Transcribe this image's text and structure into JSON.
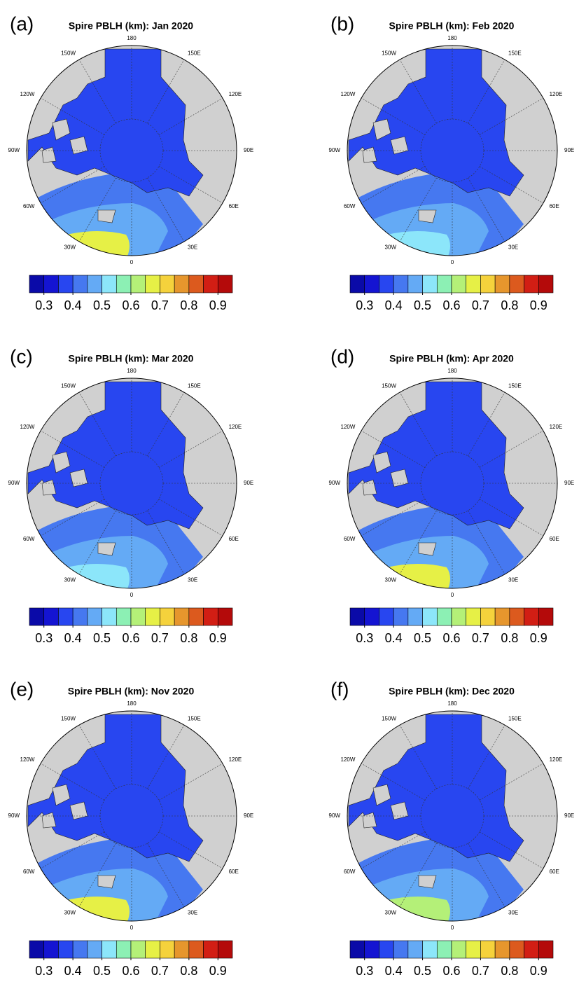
{
  "panels": [
    {
      "label": "(a)",
      "title": "Spire PBLH (km): Jan 2020"
    },
    {
      "label": "(b)",
      "title": "Spire PBLH (km): Feb 2020"
    },
    {
      "label": "(c)",
      "title": "Spire PBLH (km): Mar 2020"
    },
    {
      "label": "(d)",
      "title": "Spire PBLH (km): Apr 2020"
    },
    {
      "label": "(e)",
      "title": "Spire PBLH (km): Nov 2020"
    },
    {
      "label": "(f)",
      "title": "Spire PBLH (km): Dec 2020"
    }
  ],
  "longitude_labels": [
    "0",
    "30E",
    "60E",
    "90E",
    "120E",
    "150E",
    "180",
    "150W",
    "120W",
    "90W",
    "60W",
    "30W"
  ],
  "colorbar": {
    "lim": [
      0.25,
      0.95
    ],
    "ticks": [
      0.3,
      0.4,
      0.5,
      0.6,
      0.7,
      0.8,
      0.9
    ],
    "colors": [
      "#0a0aa8",
      "#1414d2",
      "#2846f0",
      "#4678f0",
      "#64aaf5",
      "#8ce6fa",
      "#8cf0b4",
      "#b4f078",
      "#e6f046",
      "#f5d23c",
      "#e6962d",
      "#dc5a1e",
      "#d21e14",
      "#b40a0a"
    ]
  }
}
